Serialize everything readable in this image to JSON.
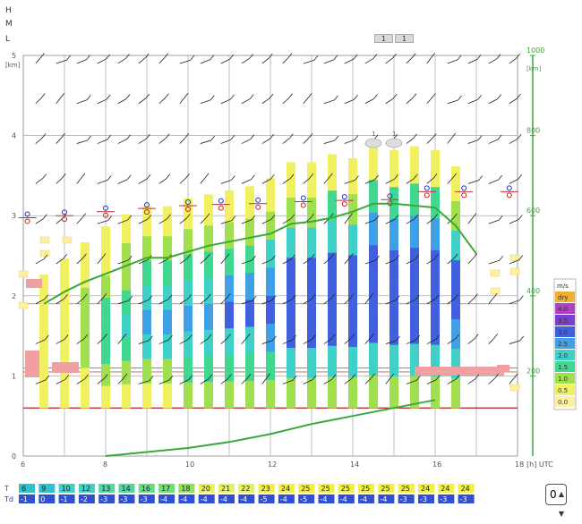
{
  "levels": {
    "high": "H",
    "mid": "M",
    "low": "L"
  },
  "layer_tabs": [
    "1",
    "1"
  ],
  "chart_data": {
    "type": "bar",
    "title": "",
    "xlabel": "[h] UTC",
    "left_axis": {
      "unit": "[km]",
      "ticks": [
        "0",
        "1",
        "2",
        "3",
        "4",
        "5"
      ],
      "range": [
        0,
        5
      ]
    },
    "right_axis": {
      "unit": "[km]",
      "ticks": [
        "200",
        "400",
        "600",
        "800",
        "1000"
      ],
      "range": [
        0,
        1000
      ],
      "color": "#3aa83a"
    },
    "x_ticks": [
      "6",
      "8",
      "10",
      "12",
      "14",
      "16",
      "18"
    ],
    "xlim": [
      6,
      18
    ],
    "legend": {
      "unit": "m/s",
      "entries": [
        {
          "label": "dry",
          "color": "#f0b030"
        },
        {
          "label": "4.0",
          "color": "#b040c0"
        },
        {
          "label": "3.5",
          "color": "#7a3fd0"
        },
        {
          "label": "3.0",
          "color": "#4060e0"
        },
        {
          "label": "2.5",
          "color": "#3fa0e8"
        },
        {
          "label": "2.0",
          "color": "#40d0c8"
        },
        {
          "label": "1.5",
          "color": "#40d890"
        },
        {
          "label": "1.0",
          "color": "#a0e050"
        },
        {
          "label": "0.5",
          "color": "#f0f060"
        },
        {
          "label": "0.0",
          "color": "#fff0a0"
        }
      ]
    },
    "bars": [
      {
        "x": 6.5,
        "top": 2.2,
        "base": 0.6
      },
      {
        "x": 7.0,
        "top": 2.4,
        "base": 0.6
      },
      {
        "x": 7.5,
        "top": 2.6,
        "base": 0.6
      },
      {
        "x": 8.0,
        "top": 2.8,
        "base": 0.6
      },
      {
        "x": 8.5,
        "top": 2.95,
        "base": 0.6
      },
      {
        "x": 9.0,
        "top": 3.05,
        "base": 0.6
      },
      {
        "x": 9.5,
        "top": 3.05,
        "base": 0.6
      },
      {
        "x": 10.0,
        "top": 3.15,
        "base": 0.6
      },
      {
        "x": 10.5,
        "top": 3.2,
        "base": 0.6
      },
      {
        "x": 11.0,
        "top": 3.25,
        "base": 0.6
      },
      {
        "x": 11.5,
        "top": 3.3,
        "base": 0.6
      },
      {
        "x": 12.0,
        "top": 3.4,
        "base": 0.6
      },
      {
        "x": 12.5,
        "top": 3.6,
        "base": 0.6
      },
      {
        "x": 13.0,
        "top": 3.6,
        "base": 0.6
      },
      {
        "x": 13.5,
        "top": 3.7,
        "base": 0.6
      },
      {
        "x": 14.0,
        "top": 3.65,
        "base": 0.6
      },
      {
        "x": 14.5,
        "top": 3.85,
        "base": 0.6
      },
      {
        "x": 15.0,
        "top": 3.75,
        "base": 0.6
      },
      {
        "x": 15.5,
        "top": 3.8,
        "base": 0.6
      },
      {
        "x": 16.0,
        "top": 3.75,
        "base": 0.6
      },
      {
        "x": 16.5,
        "top": 3.55,
        "base": 0.6
      }
    ],
    "series": [
      {
        "name": "",
        "axis": "right",
        "color": "#3aa83a",
        "points": [
          [
            6.5,
            380
          ],
          [
            7,
            410
          ],
          [
            7.5,
            435
          ],
          [
            8,
            455
          ],
          [
            8.5,
            475
          ],
          [
            9,
            495
          ],
          [
            9.5,
            495
          ],
          [
            10,
            510
          ],
          [
            10.5,
            525
          ],
          [
            11,
            535
          ],
          [
            11.5,
            545
          ],
          [
            12,
            555
          ],
          [
            12.5,
            580
          ],
          [
            13,
            585
          ],
          [
            13.5,
            595
          ],
          [
            14,
            610
          ],
          [
            14.5,
            630
          ],
          [
            15,
            630
          ],
          [
            15.5,
            625
          ],
          [
            16,
            620
          ],
          [
            16.5,
            575
          ],
          [
            17,
            505
          ]
        ]
      },
      {
        "name": "",
        "axis": "right",
        "color": "#3aa83a",
        "points": [
          [
            8,
            0
          ],
          [
            9,
            10
          ],
          [
            10,
            20
          ],
          [
            11,
            35
          ],
          [
            12,
            55
          ],
          [
            13,
            80
          ],
          [
            14,
            100
          ],
          [
            15,
            120
          ],
          [
            16,
            140
          ]
        ]
      }
    ],
    "T": [
      "6",
      "9",
      "10",
      "12",
      "13",
      "14",
      "16",
      "17",
      "18",
      "20",
      "21",
      "22",
      "23",
      "24",
      "25",
      "25",
      "25",
      "25",
      "25",
      "25",
      "24",
      "24",
      "24"
    ],
    "Td": [
      "-1",
      "0",
      "-1",
      "-2",
      "-3",
      "-3",
      "-3",
      "-4",
      "-4",
      "-4",
      "-4",
      "-4",
      "-5",
      "-4",
      "-5",
      "-4",
      "-4",
      "-4",
      "-4",
      "-3",
      "-3",
      "-3",
      "-3"
    ],
    "row_labels": {
      "t": "T",
      "td": "Td"
    },
    "t_colors": [
      "#30c0d0",
      "#30c0d0",
      "#40d0c8",
      "#40d0c8",
      "#50d8a0",
      "#50d8a0",
      "#60e080",
      "#70e070",
      "#90e060",
      "#e8f060",
      "#e8f060",
      "#e8f060",
      "#f0f040",
      "#f0f040",
      "#f0f040",
      "#f0f040",
      "#f0f040",
      "#f0f040",
      "#f0f040",
      "#f0f040",
      "#f0f040",
      "#f0f040",
      "#f0f040"
    ],
    "td_color": "#3050d0"
  },
  "zoom": {
    "value": "0"
  }
}
